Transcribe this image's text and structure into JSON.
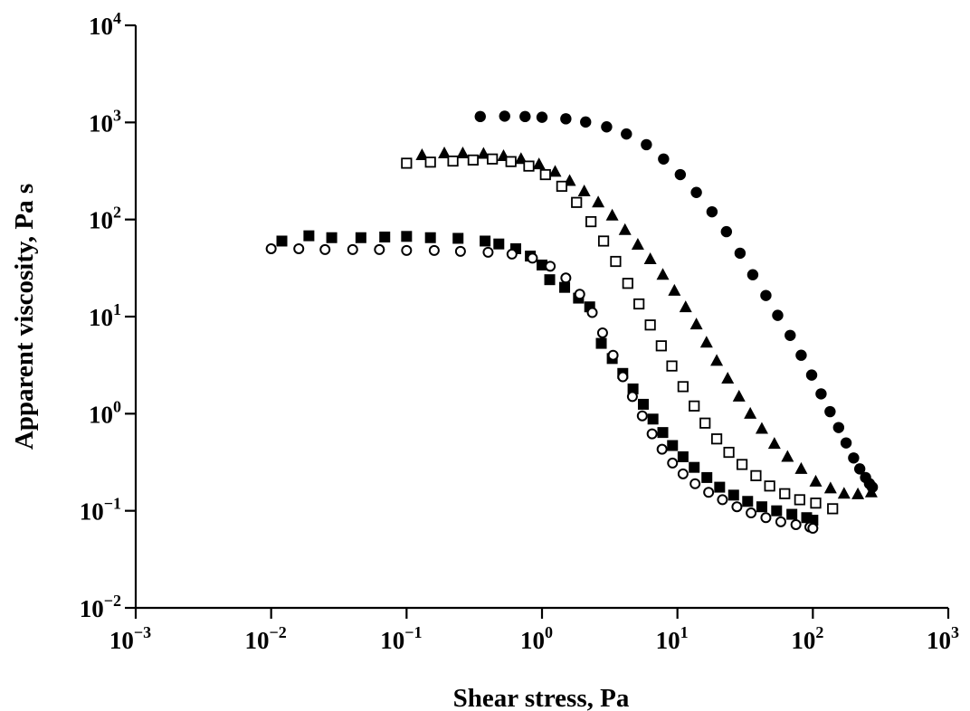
{
  "chart_data": {
    "type": "scatter",
    "title": "",
    "xlabel": "Shear stress, Pa",
    "ylabel": "Apparent viscosity, Pa s",
    "xscale": "log",
    "yscale": "log",
    "xlim": [
      0.001,
      1000
    ],
    "ylim": [
      0.01,
      10000
    ],
    "x_ticks": [
      {
        "base": "10",
        "exp": "−3",
        "value": 0.001
      },
      {
        "base": "10",
        "exp": "−2",
        "value": 0.01
      },
      {
        "base": "10",
        "exp": "−1",
        "value": 0.1
      },
      {
        "base": "10",
        "exp": "0",
        "value": 1
      },
      {
        "base": "10",
        "exp": "1",
        "value": 10
      },
      {
        "base": "10",
        "exp": "2",
        "value": 100
      },
      {
        "base": "10",
        "exp": "3",
        "value": 1000
      }
    ],
    "y_ticks": [
      {
        "base": "10",
        "exp": "−2",
        "value": 0.01
      },
      {
        "base": "10",
        "exp": "−1",
        "value": 0.1
      },
      {
        "base": "10",
        "exp": "0",
        "value": 1
      },
      {
        "base": "10",
        "exp": "1",
        "value": 10
      },
      {
        "base": "10",
        "exp": "2",
        "value": 100
      },
      {
        "base": "10",
        "exp": "3",
        "value": 1000
      },
      {
        "base": "10",
        "exp": "4",
        "value": 10000
      }
    ],
    "grid": false,
    "legend": "none",
    "series": [
      {
        "marker": "filled-circle",
        "color": "#000000",
        "points": [
          [
            0.35,
            1150
          ],
          [
            0.53,
            1160
          ],
          [
            0.75,
            1150
          ],
          [
            1.0,
            1130
          ],
          [
            1.5,
            1090
          ],
          [
            2.1,
            1010
          ],
          [
            3.0,
            900
          ],
          [
            4.2,
            760
          ],
          [
            5.9,
            590
          ],
          [
            7.9,
            420
          ],
          [
            10.5,
            290
          ],
          [
            13.8,
            190
          ],
          [
            18.0,
            120
          ],
          [
            23.0,
            75
          ],
          [
            29.0,
            45
          ],
          [
            36.0,
            27
          ],
          [
            45.0,
            16.5
          ],
          [
            55.0,
            10.3
          ],
          [
            68.0,
            6.4
          ],
          [
            82.0,
            4.0
          ],
          [
            98.0,
            2.5
          ],
          [
            115.0,
            1.6
          ],
          [
            134.0,
            1.05
          ],
          [
            155.0,
            0.72
          ],
          [
            176.0,
            0.5
          ],
          [
            200.0,
            0.35
          ],
          [
            222.0,
            0.27
          ],
          [
            245.0,
            0.22
          ],
          [
            262.0,
            0.19
          ],
          [
            275.0,
            0.175
          ]
        ]
      },
      {
        "marker": "filled-triangle",
        "color": "#000000",
        "points": [
          [
            0.13,
            460
          ],
          [
            0.19,
            480
          ],
          [
            0.26,
            480
          ],
          [
            0.37,
            475
          ],
          [
            0.52,
            450
          ],
          [
            0.7,
            420
          ],
          [
            0.95,
            370
          ],
          [
            1.25,
            310
          ],
          [
            1.6,
            250
          ],
          [
            2.05,
            195
          ],
          [
            2.6,
            150
          ],
          [
            3.3,
            110
          ],
          [
            4.1,
            78
          ],
          [
            5.1,
            55
          ],
          [
            6.3,
            39
          ],
          [
            7.8,
            27
          ],
          [
            9.5,
            18.5
          ],
          [
            11.5,
            12.5
          ],
          [
            13.8,
            8.3
          ],
          [
            16.4,
            5.4
          ],
          [
            19.5,
            3.5
          ],
          [
            23.5,
            2.3
          ],
          [
            28.5,
            1.5
          ],
          [
            34.5,
            1.0
          ],
          [
            42.0,
            0.7
          ],
          [
            52.0,
            0.49
          ],
          [
            65.0,
            0.36
          ],
          [
            82.0,
            0.27
          ],
          [
            105.0,
            0.2
          ],
          [
            135.0,
            0.17
          ],
          [
            170.0,
            0.15
          ],
          [
            215.0,
            0.148
          ],
          [
            270.0,
            0.155
          ]
        ]
      },
      {
        "marker": "open-square",
        "color": "#000000",
        "points": [
          [
            0.1,
            380
          ],
          [
            0.15,
            390
          ],
          [
            0.22,
            400
          ],
          [
            0.31,
            410
          ],
          [
            0.43,
            420
          ],
          [
            0.59,
            395
          ],
          [
            0.8,
            355
          ],
          [
            1.06,
            290
          ],
          [
            1.4,
            220
          ],
          [
            1.8,
            150
          ],
          [
            2.3,
            95
          ],
          [
            2.85,
            60
          ],
          [
            3.5,
            37
          ],
          [
            4.3,
            22
          ],
          [
            5.2,
            13.5
          ],
          [
            6.3,
            8.2
          ],
          [
            7.6,
            5.0
          ],
          [
            9.1,
            3.1
          ],
          [
            11.0,
            1.9
          ],
          [
            13.3,
            1.2
          ],
          [
            16.0,
            0.8
          ],
          [
            19.5,
            0.55
          ],
          [
            24.0,
            0.4
          ],
          [
            30.0,
            0.3
          ],
          [
            38.0,
            0.23
          ],
          [
            48.0,
            0.18
          ],
          [
            62.0,
            0.15
          ],
          [
            80.0,
            0.13
          ],
          [
            105.0,
            0.12
          ],
          [
            140.0,
            0.105
          ]
        ]
      },
      {
        "marker": "filled-square",
        "color": "#000000",
        "points": [
          [
            0.012,
            60
          ],
          [
            0.019,
            68
          ],
          [
            0.028,
            65
          ],
          [
            0.046,
            65
          ],
          [
            0.069,
            66
          ],
          [
            0.1,
            67
          ],
          [
            0.15,
            65
          ],
          [
            0.24,
            64
          ],
          [
            0.38,
            60
          ],
          [
            0.48,
            56
          ],
          [
            0.64,
            50
          ],
          [
            0.82,
            42
          ],
          [
            1.0,
            34
          ],
          [
            1.14,
            24
          ],
          [
            1.47,
            20
          ],
          [
            1.86,
            15.5
          ],
          [
            2.25,
            12.6
          ],
          [
            2.74,
            5.3
          ],
          [
            3.3,
            3.7
          ],
          [
            3.95,
            2.6
          ],
          [
            4.7,
            1.8
          ],
          [
            5.6,
            1.25
          ],
          [
            6.6,
            0.88
          ],
          [
            7.8,
            0.64
          ],
          [
            9.2,
            0.47
          ],
          [
            11.0,
            0.36
          ],
          [
            13.3,
            0.28
          ],
          [
            16.5,
            0.22
          ],
          [
            20.5,
            0.175
          ],
          [
            26.0,
            0.145
          ],
          [
            33.0,
            0.125
          ],
          [
            42.0,
            0.11
          ],
          [
            54.0,
            0.1
          ],
          [
            70.0,
            0.092
          ],
          [
            90.0,
            0.085
          ],
          [
            100.0,
            0.08
          ]
        ]
      },
      {
        "marker": "open-circle",
        "color": "#000000",
        "points": [
          [
            0.01,
            50
          ],
          [
            0.016,
            50
          ],
          [
            0.025,
            49
          ],
          [
            0.04,
            49
          ],
          [
            0.063,
            49
          ],
          [
            0.1,
            48
          ],
          [
            0.16,
            48
          ],
          [
            0.25,
            47
          ],
          [
            0.4,
            46
          ],
          [
            0.6,
            44
          ],
          [
            0.85,
            40
          ],
          [
            1.15,
            33
          ],
          [
            1.5,
            25
          ],
          [
            1.9,
            17
          ],
          [
            2.35,
            11
          ],
          [
            2.8,
            6.8
          ],
          [
            3.35,
            4.0
          ],
          [
            3.95,
            2.4
          ],
          [
            4.65,
            1.5
          ],
          [
            5.5,
            0.95
          ],
          [
            6.5,
            0.62
          ],
          [
            7.7,
            0.43
          ],
          [
            9.2,
            0.31
          ],
          [
            11.0,
            0.24
          ],
          [
            13.5,
            0.19
          ],
          [
            17.0,
            0.155
          ],
          [
            21.5,
            0.13
          ],
          [
            27.5,
            0.11
          ],
          [
            35.0,
            0.095
          ],
          [
            45.0,
            0.085
          ],
          [
            58.0,
            0.077
          ],
          [
            75.0,
            0.072
          ],
          [
            95.0,
            0.068
          ],
          [
            100.0,
            0.066
          ]
        ]
      }
    ]
  }
}
